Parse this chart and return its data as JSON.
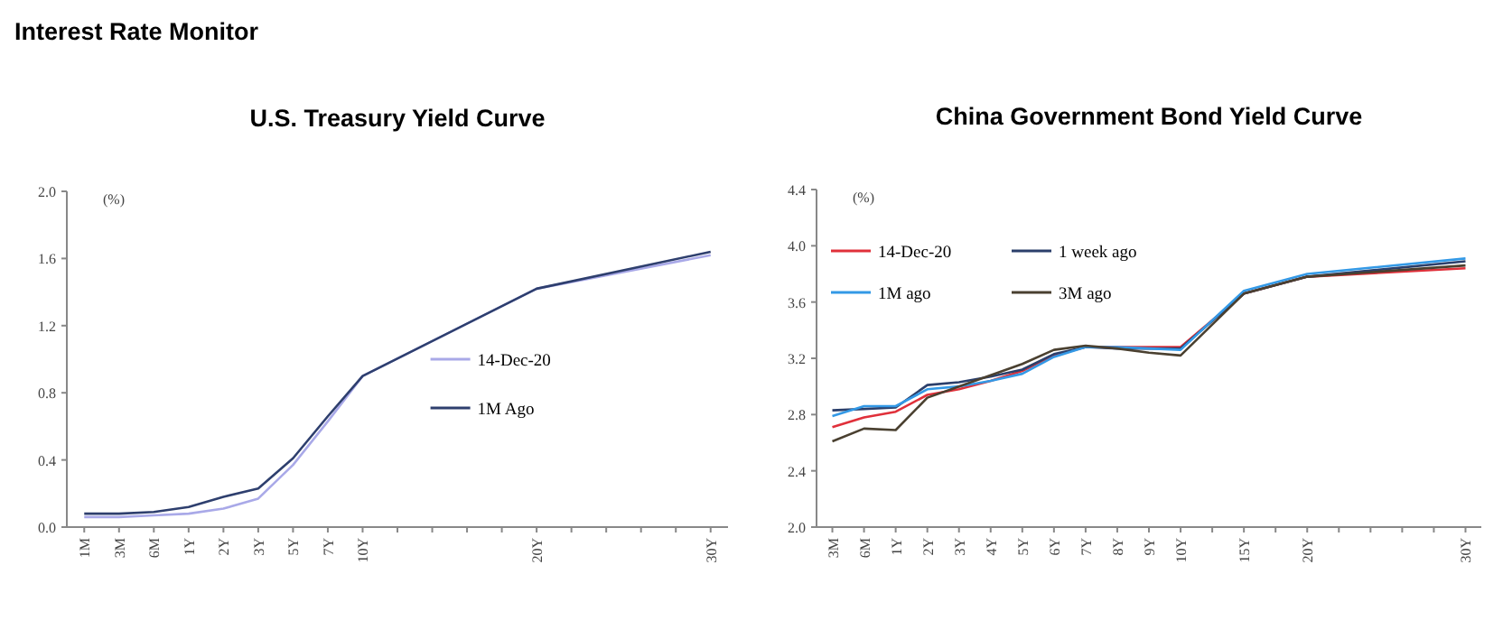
{
  "chart_data": [
    {
      "type": "line",
      "title": "U.S. Treasury Yield Curve",
      "annotations": [
        "Interest Rate Monitor"
      ],
      "ylabel": "(%)",
      "categories": [
        "1M",
        "3M",
        "6M",
        "1Y",
        "2Y",
        "3Y",
        "5Y",
        "7Y",
        "10Y",
        null,
        null,
        null,
        null,
        "20Y",
        null,
        null,
        null,
        null,
        "30Y"
      ],
      "ylim": [
        0,
        2
      ],
      "yticks": [
        {
          "value": 0,
          "label": "0.0"
        },
        0.4,
        0.8,
        1.2,
        1.6,
        {
          "value": 2,
          "label": "2.0"
        }
      ],
      "legend": "right",
      "grid": false,
      "series": [
        {
          "name": "14-Dec-20",
          "color": "#a9a9e8",
          "values": [
            0.06,
            0.06,
            0.07,
            0.08,
            0.11,
            0.17,
            0.37,
            0.63,
            0.9,
            null,
            null,
            null,
            null,
            1.42,
            null,
            null,
            null,
            null,
            1.62
          ]
        },
        {
          "name": "1M Ago",
          "color": "#2e3f6e",
          "values": [
            0.08,
            0.08,
            0.09,
            0.12,
            0.18,
            0.23,
            0.41,
            0.66,
            0.9,
            null,
            null,
            null,
            null,
            1.42,
            null,
            null,
            null,
            null,
            1.64
          ]
        }
      ]
    },
    {
      "type": "line",
      "title": "China Government Bond Yield Curve",
      "ylabel": "(%)",
      "categories": [
        "3M",
        "6M",
        "1Y",
        "2Y",
        "3Y",
        "4Y",
        "5Y",
        "6Y",
        "7Y",
        "8Y",
        "9Y",
        "10Y",
        null,
        "15Y",
        null,
        "20Y",
        null,
        null,
        null,
        null,
        "30Y"
      ],
      "ylim": [
        2,
        4.4
      ],
      "yticks": [
        {
          "value": 2,
          "label": "2.0"
        },
        2.4,
        2.8,
        3.2,
        3.6,
        {
          "value": 4,
          "label": "4.0"
        },
        4.4
      ],
      "legend": "top left",
      "grid": false,
      "series": [
        {
          "name": "14-Dec-20",
          "color": "#e0303a",
          "values": [
            2.71,
            2.78,
            2.82,
            2.94,
            2.98,
            3.04,
            3.11,
            3.22,
            3.28,
            3.28,
            3.28,
            3.28,
            null,
            3.66,
            null,
            3.78,
            null,
            null,
            null,
            null,
            3.84
          ]
        },
        {
          "name": "1 week ago",
          "color": "#2b3f6b",
          "values": [
            2.83,
            2.84,
            2.85,
            3.01,
            3.03,
            3.07,
            3.12,
            3.23,
            3.28,
            3.27,
            3.27,
            3.27,
            null,
            3.66,
            null,
            3.78,
            null,
            null,
            null,
            null,
            3.89
          ]
        },
        {
          "name": "1M ago",
          "color": "#3399e6",
          "values": [
            2.79,
            2.86,
            2.86,
            2.98,
            3.0,
            3.04,
            3.09,
            3.21,
            3.28,
            3.28,
            3.27,
            3.26,
            null,
            3.68,
            null,
            3.8,
            null,
            null,
            null,
            null,
            3.91
          ]
        },
        {
          "name": "3M ago",
          "color": "#4a4030",
          "values": [
            2.61,
            2.7,
            2.69,
            2.92,
            3.0,
            3.08,
            3.16,
            3.26,
            3.29,
            3.27,
            3.24,
            3.22,
            null,
            3.66,
            null,
            3.78,
            null,
            null,
            null,
            null,
            3.86
          ]
        }
      ]
    }
  ]
}
